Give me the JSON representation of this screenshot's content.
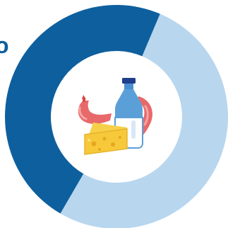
{
  "chart_data": {
    "type": "pie",
    "variant": "donut",
    "title": "",
    "categories": [
      "",
      ""
    ],
    "values": [
      52,
      48
    ],
    "colors": [
      "#b8d6ee",
      "#0e5f9e"
    ],
    "legend": "none",
    "grid": false,
    "center_icon": "dairy-and-sausage-icon"
  },
  "edge_text": "o",
  "colors": {
    "dark_blue": "#0e5f9e",
    "light_blue": "#b8d6ee",
    "background": "#ffffff"
  }
}
